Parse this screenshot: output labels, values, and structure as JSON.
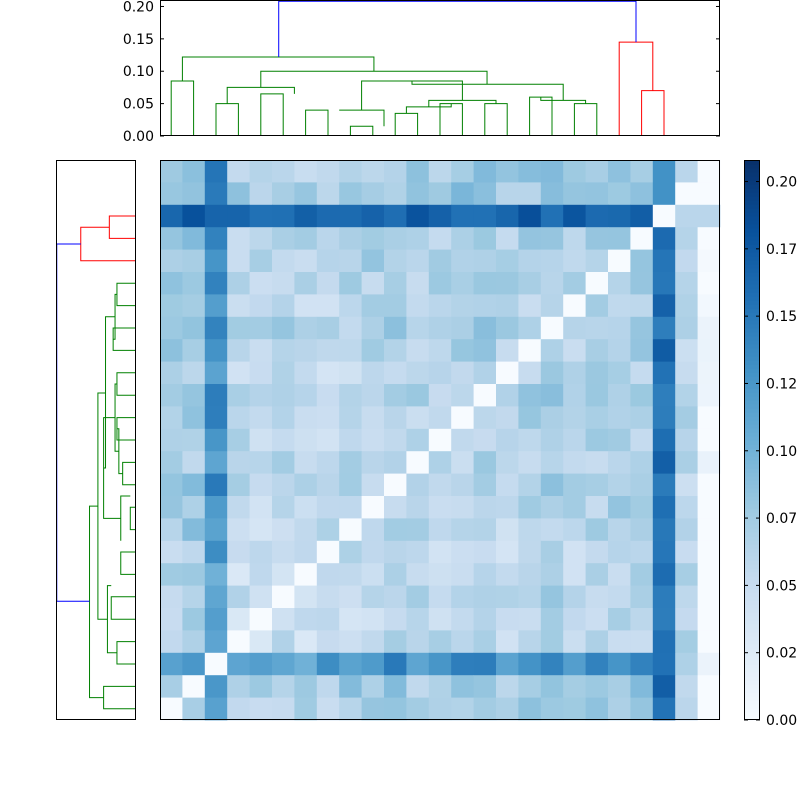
{
  "chart_data": {
    "type": "heatmap",
    "title": "",
    "xlabel": "",
    "ylabel": "",
    "n": 25,
    "colormap": "Blues",
    "colors": {
      "cluster_main": "#008000",
      "cluster_side": "#ff0000",
      "link_top": "#0000ff"
    },
    "top_dendrogram": {
      "yticks": [
        "0.00",
        "0.05",
        "0.10",
        "0.15",
        "0.20"
      ],
      "ylim": [
        0,
        0.21
      ]
    },
    "colorbar": {
      "ticks": [
        {
          "value": 0.0,
          "label": "0.00"
        },
        {
          "value": 0.025,
          "label": "0.02"
        },
        {
          "value": 0.05,
          "label": "0.05"
        },
        {
          "value": 0.075,
          "label": "0.07"
        },
        {
          "value": 0.1,
          "label": "0.10"
        },
        {
          "value": 0.125,
          "label": "0.12"
        },
        {
          "value": 0.15,
          "label": "0.15"
        },
        {
          "value": 0.175,
          "label": "0.17"
        },
        {
          "value": 0.2,
          "label": "0.20"
        }
      ],
      "range": [
        0,
        0.208
      ]
    },
    "dendrogram_links": [
      {
        "l": 0,
        "r": 1,
        "h": 0.085,
        "c": "g"
      },
      {
        "l": 2,
        "r": 3,
        "h": 0.05,
        "c": "g"
      },
      {
        "l": 4,
        "r": 5,
        "h": 0.065,
        "c": "g"
      },
      {
        "l": 6,
        "r": 7,
        "h": 0.04,
        "c": "g"
      },
      {
        "l": 8,
        "r": 9,
        "h": 0.015,
        "c": "g"
      },
      {
        "l": 10,
        "r": 11,
        "h": 0.035,
        "c": "g"
      },
      {
        "l": 12,
        "r": 13,
        "h": 0.05,
        "c": "g"
      },
      {
        "l": 14,
        "r": 15,
        "h": 0.05,
        "c": "g"
      },
      {
        "l": 16,
        "r": 17,
        "h": 0.06,
        "c": "g"
      },
      {
        "l": 18,
        "r": 19,
        "h": 0.05,
        "c": "g"
      },
      {
        "l": 21,
        "r": 22,
        "h": 0.07,
        "c": "r"
      }
    ],
    "row_mean": [
      0.075,
      0.09,
      0.19,
      0.05,
      0.045,
      0.06,
      0.045,
      0.05,
      0.06,
      0.06,
      0.075,
      0.055,
      0.06,
      0.07,
      0.075,
      0.055,
      0.065,
      0.07,
      0.06,
      0.07,
      0.08,
      0.075,
      0.065,
      0.09,
      0.085
    ],
    "last_cols": [
      0.13,
      0.06,
      0.0
    ]
  }
}
